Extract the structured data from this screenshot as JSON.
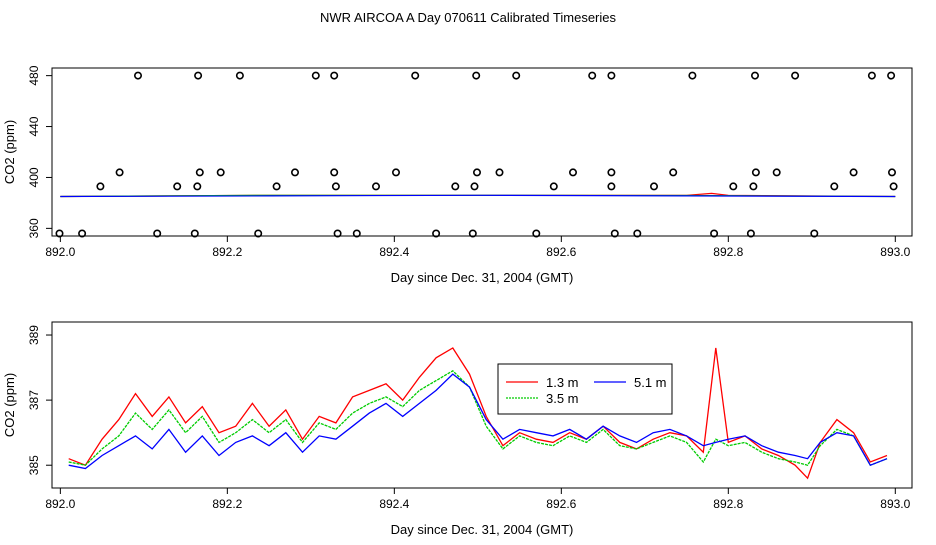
{
  "page_title": "NWR AIRCOA A  Day 070611  Calibrated Timeseries",
  "colors": {
    "red": "#ff0000",
    "green": "#00cc00",
    "blue": "#0000ff",
    "marker": "#000000"
  },
  "chart_data": [
    {
      "type": "line+scatter",
      "title": "",
      "xlabel": "Day since Dec. 31, 2004 (GMT)",
      "ylabel": "CO2 (ppm)",
      "xlim": [
        891.99,
        893.02
      ],
      "ylim": [
        354,
        486
      ],
      "xticks": [
        892.0,
        892.2,
        892.4,
        892.6,
        892.8,
        893.0
      ],
      "xtick_labels": [
        "892.0",
        "892.2",
        "892.4",
        "892.6",
        "892.8",
        "893.0"
      ],
      "yticks": [
        360,
        400,
        440,
        480
      ],
      "ytick_labels": [
        "360",
        "400",
        "440",
        "480"
      ],
      "grid": false,
      "lines": [
        {
          "name": "1.3 m",
          "color": "red",
          "x": [
            892.0,
            892.25,
            892.5,
            892.75,
            892.78,
            892.8,
            893.0
          ],
          "y": [
            385,
            386,
            386,
            386,
            387.5,
            386,
            385
          ]
        },
        {
          "name": "3.5 m",
          "color": "green",
          "x": [
            892.0,
            892.25,
            892.5,
            892.75,
            893.0
          ],
          "y": [
            385,
            386,
            386,
            385.8,
            385
          ]
        },
        {
          "name": "5.1 m",
          "color": "blue",
          "x": [
            892.0,
            892.25,
            892.5,
            892.75,
            893.0
          ],
          "y": [
            385,
            385.5,
            386,
            385.5,
            385
          ]
        }
      ],
      "markers": {
        "y480": [
          892.093,
          892.165,
          892.215,
          892.306,
          892.328,
          892.425,
          892.498,
          892.546,
          892.637,
          892.66,
          892.757,
          892.832,
          892.88,
          892.972,
          892.995
        ],
        "y404": [
          892.071,
          892.167,
          892.192,
          892.281,
          892.328,
          892.402,
          892.499,
          892.526,
          892.614,
          892.66,
          892.734,
          892.833,
          892.858,
          892.95,
          892.996
        ],
        "y393": [
          892.048,
          892.14,
          892.164,
          892.259,
          892.33,
          892.378,
          892.473,
          892.496,
          892.591,
          892.66,
          892.711,
          892.806,
          892.83,
          892.927,
          892.998
        ],
        "y356": [
          891.999,
          892.026,
          892.116,
          892.161,
          892.237,
          892.332,
          892.355,
          892.45,
          892.494,
          892.57,
          892.664,
          892.691,
          892.783,
          892.827,
          892.903
        ]
      }
    },
    {
      "type": "line",
      "title": "",
      "xlabel": "Day since Dec. 31, 2004 (GMT)",
      "ylabel": "CO2 (ppm)",
      "xlim": [
        891.99,
        893.02
      ],
      "ylim": [
        384.3,
        389.4
      ],
      "xticks": [
        892.0,
        892.2,
        892.4,
        892.6,
        892.8,
        893.0
      ],
      "xtick_labels": [
        "892.0",
        "892.2",
        "892.4",
        "892.6",
        "892.8",
        "893.0"
      ],
      "yticks": [
        385,
        387,
        389
      ],
      "ytick_labels": [
        "385",
        "387",
        "389"
      ],
      "grid": false,
      "legend": {
        "placement": "center",
        "entries": [
          {
            "label": "1.3 m",
            "color": "red"
          },
          {
            "label": "5.1 m",
            "color": "blue"
          },
          {
            "label": "3.5 m",
            "color": "green"
          }
        ]
      },
      "series": [
        {
          "name": "1.3 m",
          "color": "red",
          "x": [
            892.01,
            892.03,
            892.05,
            892.07,
            892.09,
            892.11,
            892.13,
            892.15,
            892.17,
            892.19,
            892.21,
            892.23,
            892.25,
            892.27,
            892.29,
            892.31,
            892.33,
            892.35,
            892.37,
            892.39,
            892.41,
            892.43,
            892.45,
            892.47,
            892.49,
            892.51,
            892.53,
            892.55,
            892.57,
            892.59,
            892.61,
            892.63,
            892.65,
            892.67,
            892.69,
            892.71,
            892.73,
            892.75,
            892.77,
            892.785,
            892.8,
            892.82,
            892.84,
            892.86,
            892.88,
            892.895,
            892.91,
            892.93,
            892.95,
            892.97,
            892.99
          ],
          "y": [
            385.2,
            385.0,
            385.8,
            386.4,
            387.2,
            386.5,
            387.1,
            386.3,
            386.8,
            386.0,
            386.2,
            386.9,
            386.2,
            386.7,
            385.8,
            386.5,
            386.3,
            387.1,
            387.3,
            387.5,
            387.0,
            387.7,
            388.3,
            388.6,
            387.8,
            386.5,
            385.6,
            386.0,
            385.8,
            385.7,
            386.0,
            385.8,
            386.2,
            385.7,
            385.5,
            385.8,
            386.0,
            385.9,
            385.4,
            388.6,
            385.7,
            385.9,
            385.5,
            385.3,
            385.0,
            384.6,
            385.7,
            386.4,
            386.0,
            385.1,
            385.3
          ]
        },
        {
          "name": "3.5 m",
          "color": "green",
          "x": [
            892.01,
            892.03,
            892.05,
            892.07,
            892.09,
            892.11,
            892.13,
            892.15,
            892.17,
            892.19,
            892.21,
            892.23,
            892.25,
            892.27,
            892.29,
            892.31,
            892.33,
            892.35,
            892.37,
            892.39,
            892.41,
            892.43,
            892.45,
            892.47,
            892.49,
            892.51,
            892.53,
            892.55,
            892.57,
            892.59,
            892.61,
            892.63,
            892.65,
            892.67,
            892.69,
            892.71,
            892.73,
            892.75,
            892.77,
            892.785,
            892.8,
            892.82,
            892.84,
            892.86,
            892.88,
            892.895,
            892.91,
            892.93,
            892.95,
            892.97,
            892.99
          ],
          "y": [
            385.1,
            385.0,
            385.5,
            385.9,
            386.6,
            386.1,
            386.7,
            386.0,
            386.5,
            385.7,
            386.0,
            386.4,
            386.0,
            386.4,
            385.7,
            386.3,
            386.1,
            386.6,
            386.9,
            387.1,
            386.8,
            387.3,
            387.6,
            387.9,
            387.4,
            386.2,
            385.5,
            385.9,
            385.7,
            385.6,
            385.9,
            385.7,
            386.1,
            385.6,
            385.5,
            385.7,
            385.9,
            385.7,
            385.1,
            385.8,
            385.6,
            385.7,
            385.4,
            385.2,
            385.1,
            385.0,
            385.6,
            386.1,
            385.9,
            385.0,
            385.2
          ]
        },
        {
          "name": "5.1 m",
          "color": "blue",
          "x": [
            892.01,
            892.03,
            892.05,
            892.07,
            892.09,
            892.11,
            892.13,
            892.15,
            892.17,
            892.19,
            892.21,
            892.23,
            892.25,
            892.27,
            892.29,
            892.31,
            892.33,
            892.35,
            892.37,
            892.39,
            892.41,
            892.43,
            892.45,
            892.47,
            892.49,
            892.51,
            892.53,
            892.55,
            892.57,
            892.59,
            892.61,
            892.63,
            892.65,
            892.67,
            892.69,
            892.71,
            892.73,
            892.75,
            892.77,
            892.785,
            892.8,
            892.82,
            892.84,
            892.86,
            892.88,
            892.895,
            892.91,
            892.93,
            892.95,
            892.97,
            892.99
          ],
          "y": [
            385.0,
            384.9,
            385.3,
            385.6,
            385.9,
            385.5,
            386.1,
            385.4,
            385.9,
            385.3,
            385.7,
            385.9,
            385.6,
            386.0,
            385.4,
            385.9,
            385.8,
            386.2,
            386.6,
            386.9,
            386.5,
            386.9,
            387.3,
            387.8,
            387.4,
            386.4,
            385.8,
            386.1,
            386.0,
            385.9,
            386.1,
            385.8,
            386.2,
            385.9,
            385.7,
            386.0,
            386.1,
            385.9,
            385.6,
            385.7,
            385.8,
            385.9,
            385.6,
            385.4,
            385.3,
            385.2,
            385.7,
            386.0,
            385.9,
            385.0,
            385.2
          ]
        }
      ]
    }
  ]
}
